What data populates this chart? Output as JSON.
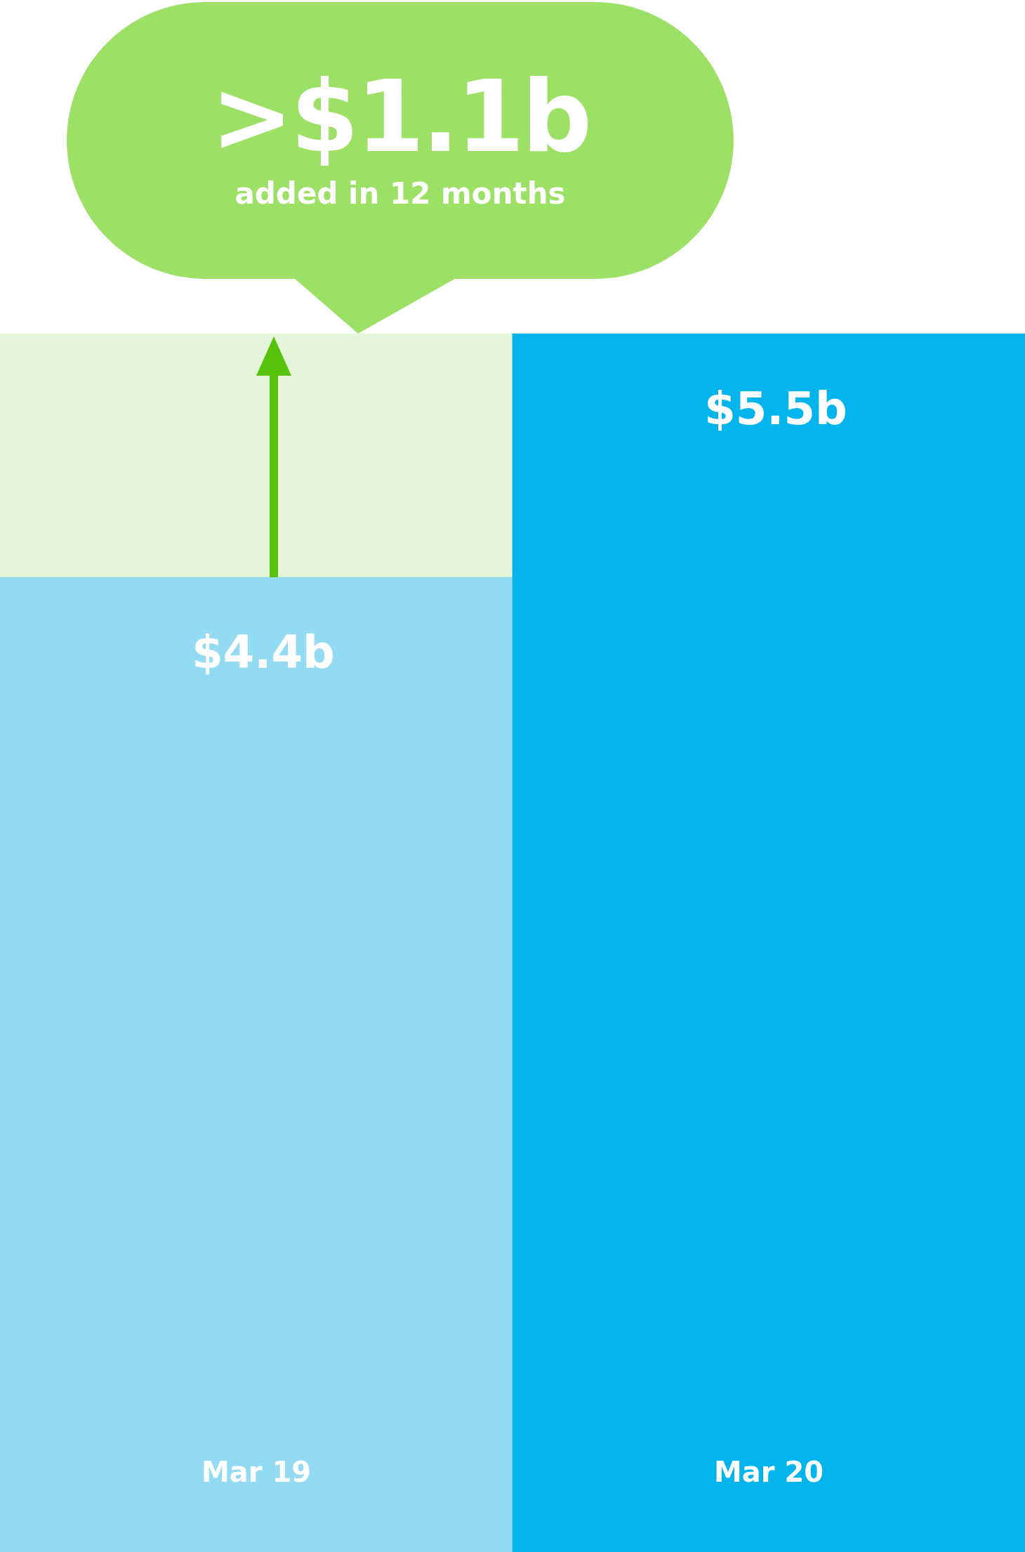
{
  "chart_data": {
    "type": "bar",
    "categories": [
      "Mar 19",
      "Mar 20"
    ],
    "values": [
      4.4,
      5.5
    ],
    "colors": [
      "#93dbf3",
      "#02b4ec"
    ],
    "value_labels": [
      "$4.4b",
      "$5.5b"
    ],
    "bands": [
      {
        "axis": "y",
        "from": 4.4,
        "to": 5.5,
        "color": "#e5f5da"
      }
    ],
    "annotations": [
      ">$1.1b",
      "added in 12 months"
    ]
  }
}
